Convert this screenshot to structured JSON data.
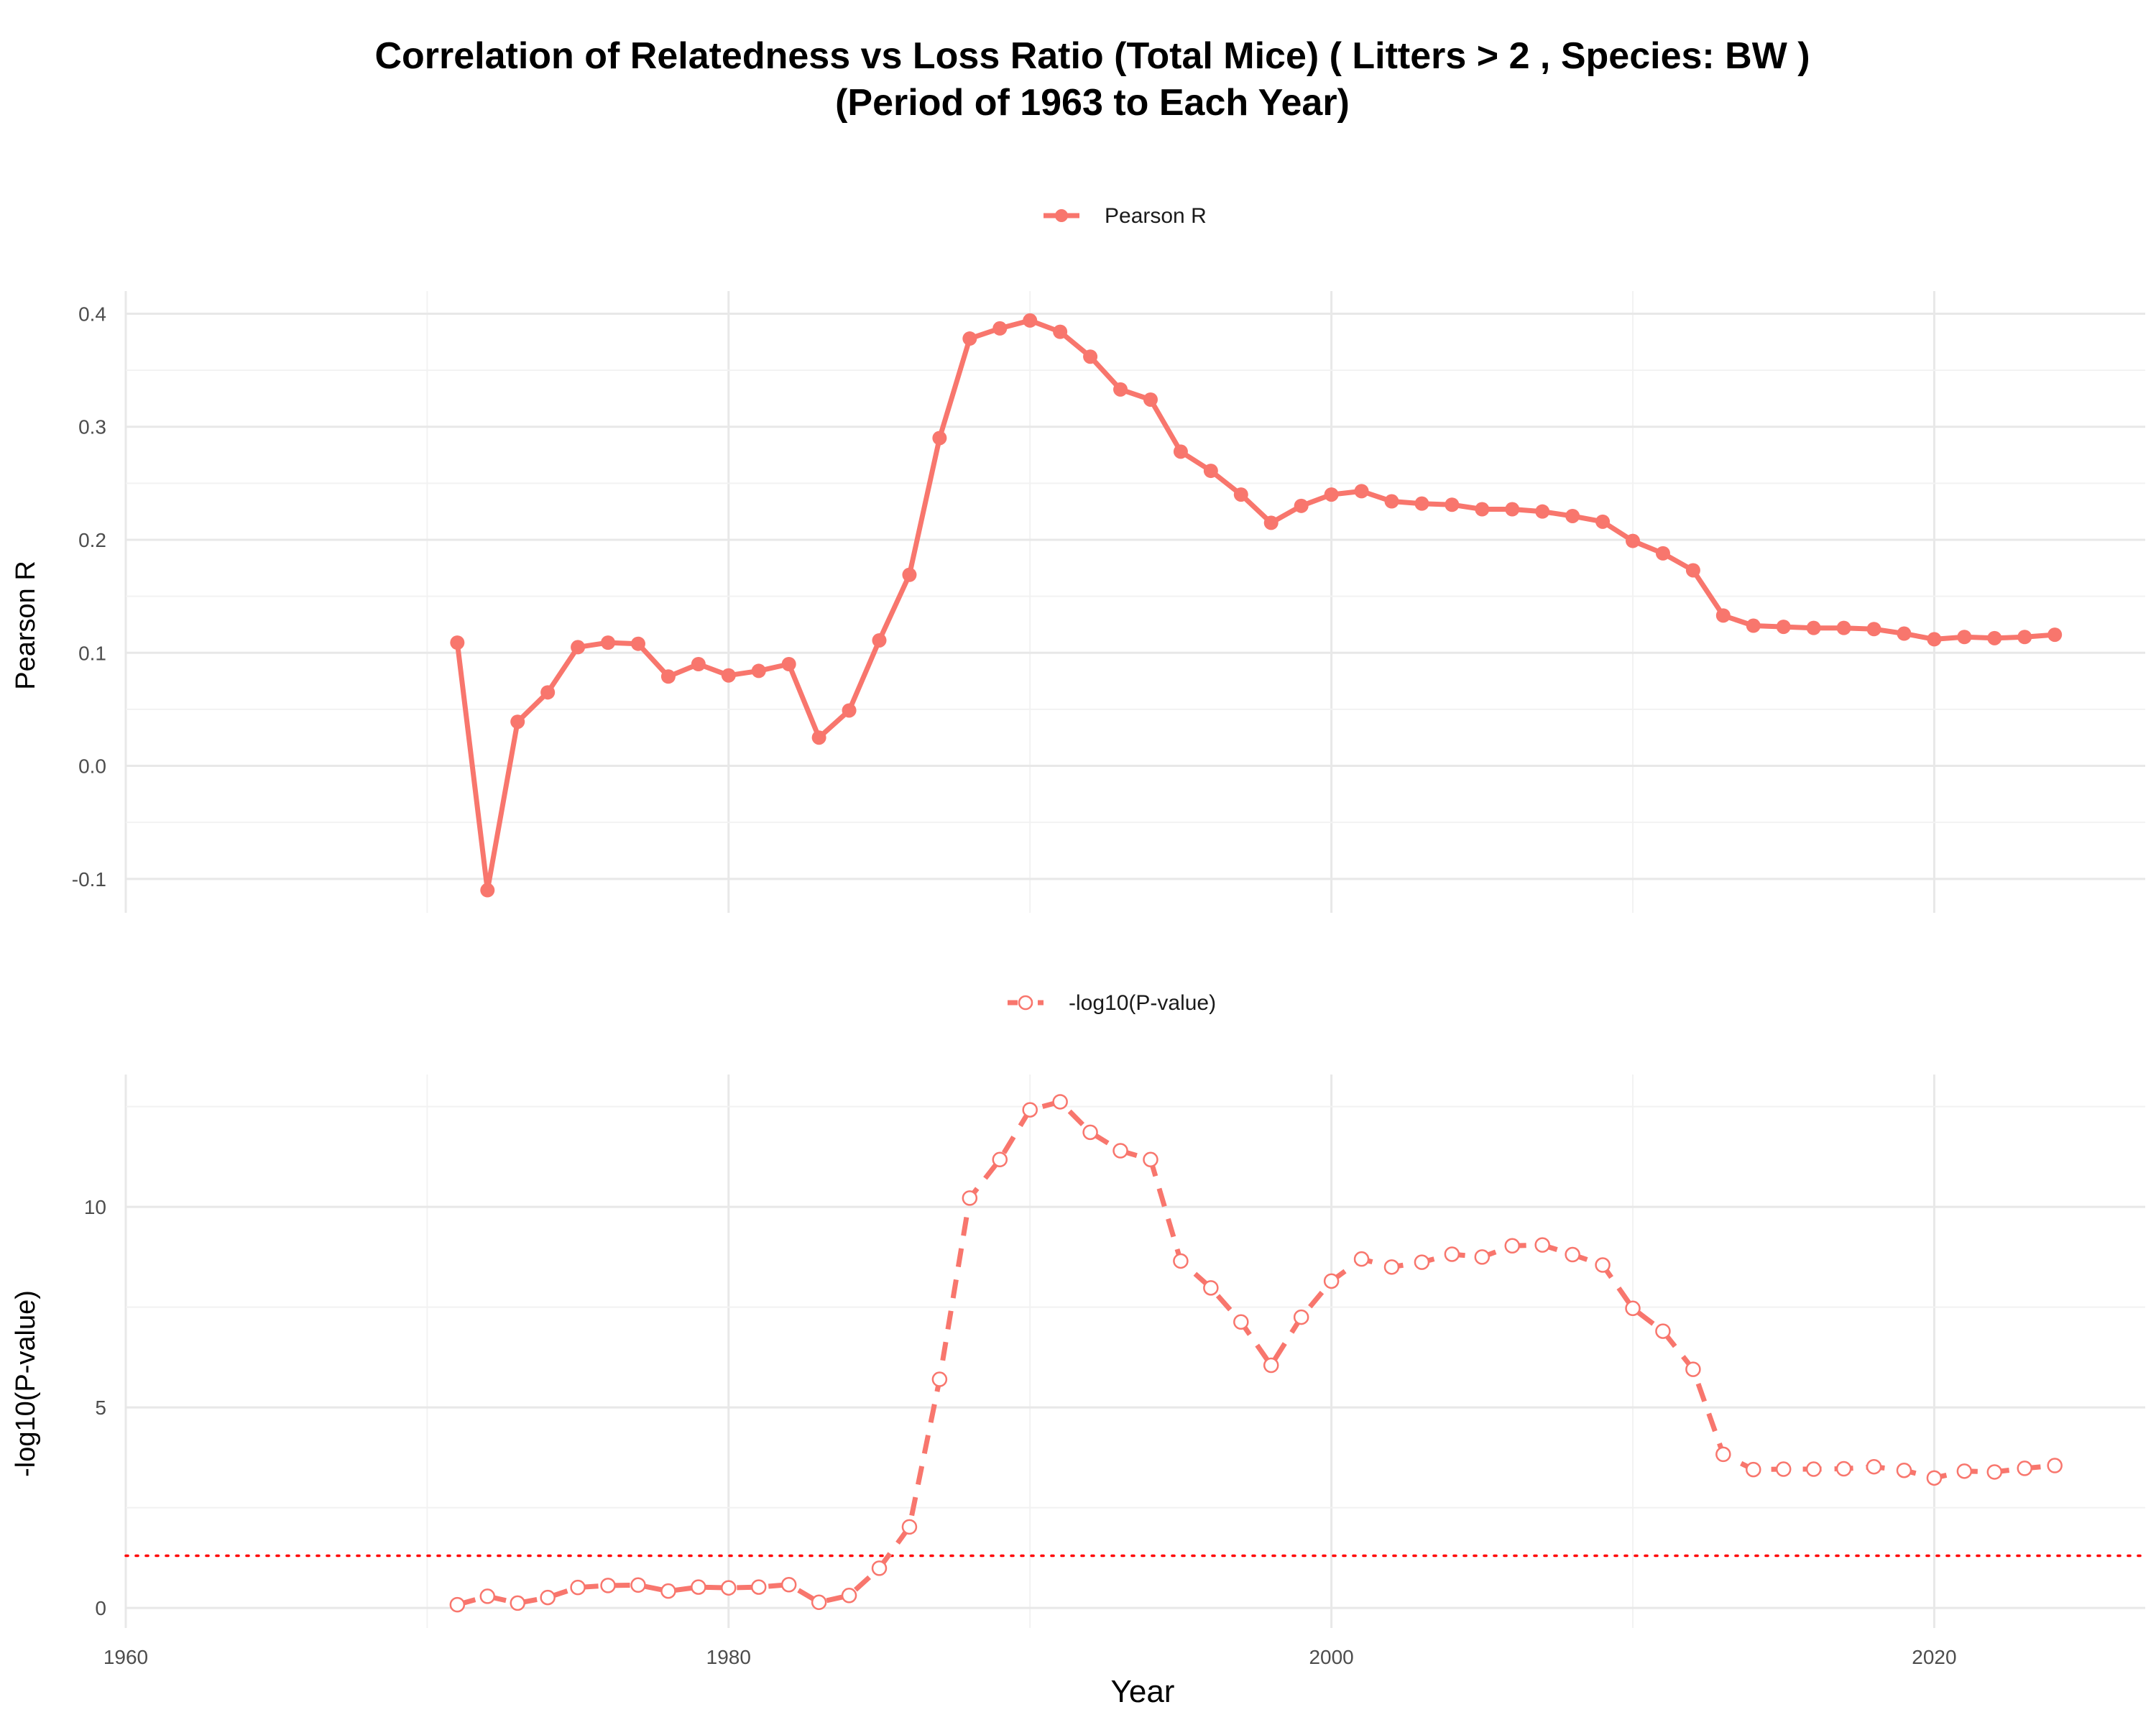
{
  "title_line1": "Correlation of Relatedness vs Loss Ratio (Total Mice) ( Litters > 2 , Species: BW )",
  "title_line2": "(Period of 1963 to Each Year)",
  "chart_data": [
    {
      "type": "line",
      "legend": "Pearson R",
      "ylabel": "Pearson R",
      "xlim": [
        1960,
        2027
      ],
      "ylim": [
        -0.13,
        0.42
      ],
      "yticks": [
        -0.1,
        0.0,
        0.1,
        0.2,
        0.3,
        0.4
      ],
      "ytick_labels": [
        "-0.1",
        "0.0",
        "0.1",
        "0.2",
        "0.3",
        "0.4"
      ],
      "line_style": "solid",
      "marker": "filled-circle",
      "color": "#F8766D",
      "x": [
        1971,
        1972,
        1973,
        1974,
        1975,
        1976,
        1977,
        1978,
        1979,
        1980,
        1981,
        1982,
        1983,
        1984,
        1985,
        1986,
        1987,
        1988,
        1989,
        1990,
        1991,
        1992,
        1993,
        1994,
        1995,
        1996,
        1997,
        1998,
        1999,
        2000,
        2001,
        2002,
        2003,
        2004,
        2005,
        2006,
        2007,
        2008,
        2009,
        2010,
        2011,
        2012,
        2013,
        2014,
        2015,
        2016,
        2017,
        2018,
        2019,
        2020,
        2021,
        2022,
        2023,
        2024
      ],
      "y": [
        0.109,
        -0.11,
        0.039,
        0.065,
        0.105,
        0.109,
        0.108,
        0.079,
        0.09,
        0.08,
        0.084,
        0.09,
        0.025,
        0.049,
        0.111,
        0.169,
        0.29,
        0.378,
        0.387,
        0.394,
        0.384,
        0.362,
        0.333,
        0.324,
        0.278,
        0.261,
        0.24,
        0.215,
        0.23,
        0.24,
        0.243,
        0.234,
        0.232,
        0.231,
        0.227,
        0.227,
        0.225,
        0.221,
        0.216,
        0.199,
        0.188,
        0.173,
        0.133,
        0.124,
        0.123,
        0.122,
        0.122,
        0.121,
        0.117,
        0.112,
        0.114,
        0.113,
        0.114,
        0.116
      ]
    },
    {
      "type": "line",
      "legend": "-log10(P-value)",
      "ylabel": "-log10(P-value)",
      "xlabel": "Year",
      "xlim": [
        1960,
        2027
      ],
      "ylim": [
        -0.5,
        13.3
      ],
      "xticks": [
        1960,
        1980,
        2000,
        2020
      ],
      "xtick_labels": [
        "1960",
        "1980",
        "2000",
        "2020"
      ],
      "yticks": [
        0,
        5,
        10
      ],
      "ytick_labels": [
        "0",
        "5",
        "10"
      ],
      "line_style": "dashed",
      "marker": "open-circle",
      "color": "#F8766D",
      "reference_line": {
        "y": 1.301,
        "style": "dotted",
        "color": "#FF0000"
      },
      "x": [
        1971,
        1972,
        1973,
        1974,
        1975,
        1976,
        1977,
        1978,
        1979,
        1980,
        1981,
        1982,
        1983,
        1984,
        1985,
        1986,
        1987,
        1988,
        1989,
        1990,
        1991,
        1992,
        1993,
        1994,
        1995,
        1996,
        1997,
        1998,
        1999,
        2000,
        2001,
        2002,
        2003,
        2004,
        2005,
        2006,
        2007,
        2008,
        2009,
        2010,
        2011,
        2012,
        2013,
        2014,
        2015,
        2016,
        2017,
        2018,
        2019,
        2020,
        2021,
        2022,
        2023,
        2024
      ],
      "y": [
        0.08,
        0.29,
        0.12,
        0.26,
        0.51,
        0.56,
        0.57,
        0.42,
        0.52,
        0.5,
        0.52,
        0.58,
        0.14,
        0.31,
        0.99,
        2.02,
        5.7,
        10.22,
        11.18,
        12.42,
        12.62,
        11.86,
        11.4,
        11.18,
        8.65,
        7.98,
        7.13,
        6.05,
        7.25,
        8.15,
        8.7,
        8.5,
        8.62,
        8.82,
        8.75,
        9.03,
        9.05,
        8.81,
        8.55,
        7.47,
        6.9,
        5.95,
        3.83,
        3.45,
        3.46,
        3.46,
        3.47,
        3.52,
        3.43,
        3.24,
        3.41,
        3.39,
        3.48,
        3.55
      ]
    }
  ]
}
